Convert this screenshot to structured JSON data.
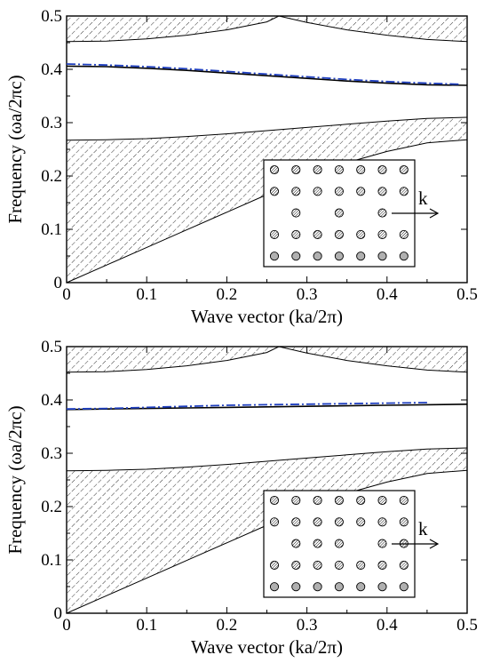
{
  "chart_data": [
    {
      "type": "line",
      "title": "",
      "xlabel": "Wave vector (ka/2π)",
      "ylabel": "Frequency (ωa/2πc)",
      "xlim": [
        0,
        0.5
      ],
      "ylim": [
        0,
        0.5
      ],
      "xticks": [
        "0",
        "0.1",
        "0.2",
        "0.3",
        "0.4",
        "0.5"
      ],
      "yticks": [
        "0",
        "0.1",
        "0.2",
        "0.3",
        "0.4",
        "0.5"
      ],
      "grid": false,
      "legend": "none",
      "bands": [
        {
          "x": [
            0,
            0.05,
            0.1,
            0.15,
            0.2,
            0.25,
            0.3,
            0.35,
            0.4,
            0.45,
            0.5
          ],
          "lower": [
            0,
            0.033,
            0.066,
            0.099,
            0.132,
            0.165,
            0.198,
            0.225,
            0.246,
            0.262,
            0.268
          ],
          "upper": [
            0.267,
            0.268,
            0.27,
            0.274,
            0.279,
            0.285,
            0.291,
            0.297,
            0.303,
            0.308,
            0.31
          ]
        },
        {
          "x": [
            0,
            0.05,
            0.1,
            0.15,
            0.2,
            0.25,
            0.265,
            0.3,
            0.35,
            0.4,
            0.45,
            0.5
          ],
          "lower": [
            0.452,
            0.453,
            0.457,
            0.464,
            0.474,
            0.489,
            0.5,
            0.488,
            0.474,
            0.464,
            0.456,
            0.452
          ],
          "upper": [
            0.5,
            0.5,
            0.5,
            0.5,
            0.5,
            0.5,
            0.5,
            0.5,
            0.5,
            0.5,
            0.5,
            0.5
          ]
        }
      ],
      "series": [
        {
          "style": "solid",
          "color": "#000000",
          "x": [
            0,
            0.05,
            0.1,
            0.15,
            0.2,
            0.25,
            0.3,
            0.35,
            0.4,
            0.45,
            0.5
          ],
          "y": [
            0.406,
            0.405,
            0.402,
            0.398,
            0.393,
            0.388,
            0.383,
            0.378,
            0.374,
            0.371,
            0.37
          ]
        },
        {
          "style": "dash-dot",
          "color": "#1f3fbf",
          "x": [
            0,
            0.05,
            0.1,
            0.15,
            0.2,
            0.25,
            0.3,
            0.35,
            0.4,
            0.45,
            0.49
          ],
          "y": [
            0.41,
            0.408,
            0.405,
            0.401,
            0.396,
            0.391,
            0.386,
            0.381,
            0.377,
            0.374,
            0.372
          ]
        }
      ],
      "inset": {
        "rows": [
          [
            1,
            1,
            1,
            1,
            1,
            1,
            1
          ],
          [
            1,
            1,
            1,
            1,
            1,
            1,
            1
          ],
          [
            0,
            1,
            0,
            1,
            0,
            1,
            0
          ],
          [
            1,
            1,
            1,
            1,
            1,
            1,
            1
          ],
          [
            1,
            1,
            1,
            1,
            1,
            1,
            1
          ]
        ],
        "arrow_label": "k"
      }
    },
    {
      "type": "line",
      "title": "",
      "xlabel": "Wave vector (ka/2π)",
      "ylabel": "Frequency (ωa/2πc)",
      "xlim": [
        0,
        0.5
      ],
      "ylim": [
        0,
        0.5
      ],
      "xticks": [
        "0",
        "0.1",
        "0.2",
        "0.3",
        "0.4",
        "0.5"
      ],
      "yticks": [
        "0",
        "0.1",
        "0.2",
        "0.3",
        "0.4",
        "0.5"
      ],
      "grid": false,
      "legend": "none",
      "bands": [
        {
          "x": [
            0,
            0.05,
            0.1,
            0.15,
            0.2,
            0.25,
            0.3,
            0.35,
            0.4,
            0.45,
            0.5
          ],
          "lower": [
            0,
            0.033,
            0.066,
            0.099,
            0.132,
            0.165,
            0.198,
            0.225,
            0.246,
            0.262,
            0.268
          ],
          "upper": [
            0.267,
            0.268,
            0.27,
            0.274,
            0.279,
            0.285,
            0.291,
            0.297,
            0.303,
            0.308,
            0.31
          ]
        },
        {
          "x": [
            0,
            0.05,
            0.1,
            0.15,
            0.2,
            0.25,
            0.265,
            0.3,
            0.35,
            0.4,
            0.45,
            0.5
          ],
          "lower": [
            0.452,
            0.453,
            0.457,
            0.464,
            0.474,
            0.489,
            0.5,
            0.488,
            0.474,
            0.464,
            0.456,
            0.452
          ],
          "upper": [
            0.5,
            0.5,
            0.5,
            0.5,
            0.5,
            0.5,
            0.5,
            0.5,
            0.5,
            0.5,
            0.5,
            0.5
          ]
        }
      ],
      "series": [
        {
          "style": "solid",
          "color": "#000000",
          "x": [
            0,
            0.05,
            0.1,
            0.15,
            0.2,
            0.25,
            0.3,
            0.35,
            0.4,
            0.45,
            0.5
          ],
          "y": [
            0.382,
            0.383,
            0.384,
            0.385,
            0.386,
            0.387,
            0.388,
            0.389,
            0.39,
            0.391,
            0.392
          ]
        },
        {
          "style": "dash-dot",
          "color": "#1f3fbf",
          "x": [
            0,
            0.05,
            0.1,
            0.15,
            0.2,
            0.25,
            0.3,
            0.35,
            0.4,
            0.45
          ],
          "y": [
            0.383,
            0.384,
            0.386,
            0.388,
            0.39,
            0.391,
            0.392,
            0.393,
            0.394,
            0.395
          ]
        }
      ],
      "inset": {
        "rows": [
          [
            1,
            1,
            1,
            1,
            1,
            1,
            1
          ],
          [
            1,
            1,
            1,
            1,
            1,
            1,
            1
          ],
          [
            0,
            1,
            1,
            1,
            0,
            1,
            1
          ],
          [
            1,
            1,
            1,
            1,
            1,
            1,
            1
          ],
          [
            1,
            1,
            1,
            1,
            1,
            1,
            1
          ]
        ],
        "arrow_label": "k"
      }
    }
  ]
}
